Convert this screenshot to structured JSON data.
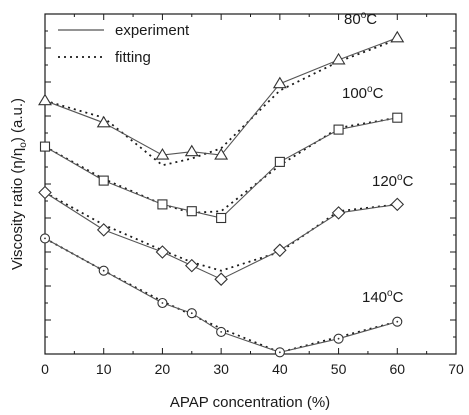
{
  "chart_data": {
    "type": "line",
    "xlabel": "APAP concentration (%)",
    "ylabel_main": "Viscosity ratio (",
    "ylabel_eta": "η/η",
    "ylabel_sub": "o",
    "ylabel_tail": ") (a.u.)",
    "xlim": [
      0,
      70
    ],
    "ylim": [
      0,
      10
    ],
    "x_ticks": [
      "0",
      "10",
      "20",
      "30",
      "40",
      "50",
      "60",
      "70"
    ],
    "legend": {
      "placement": "top-left",
      "experiment": "experiment",
      "fitting": "fitting"
    },
    "series": [
      {
        "name": "80",
        "name_suffix": "C",
        "marker": "triangle",
        "x": [
          0,
          10,
          20,
          25,
          30,
          40,
          50,
          60
        ],
        "y": [
          7.45,
          6.8,
          5.85,
          5.95,
          5.85,
          7.95,
          8.65,
          9.3
        ],
        "fit": [
          7.45,
          6.95,
          5.55,
          5.75,
          6.05,
          7.75,
          8.6,
          9.25
        ]
      },
      {
        "name": "100",
        "name_suffix": "C",
        "marker": "square",
        "x": [
          0,
          10,
          20,
          25,
          30,
          40,
          50,
          60
        ],
        "y": [
          6.1,
          5.1,
          4.4,
          4.2,
          4.0,
          5.65,
          6.6,
          6.95
        ],
        "fit": [
          6.1,
          5.15,
          4.4,
          4.15,
          4.2,
          5.55,
          6.65,
          6.95
        ]
      },
      {
        "name": "120",
        "name_suffix": "C",
        "marker": "diamond",
        "x": [
          0,
          10,
          20,
          25,
          30,
          40,
          50,
          60
        ],
        "y": [
          4.75,
          3.65,
          3.0,
          2.6,
          2.2,
          3.05,
          4.15,
          4.4
        ],
        "fit": [
          4.75,
          3.8,
          3.05,
          2.7,
          2.45,
          3.0,
          4.2,
          4.4
        ]
      },
      {
        "name": "140",
        "name_suffix": "C",
        "marker": "circle",
        "x": [
          0,
          10,
          20,
          25,
          30,
          40,
          50,
          60
        ],
        "y": [
          3.4,
          2.45,
          1.5,
          1.2,
          0.65,
          0.05,
          0.45,
          0.95
        ],
        "fit": [
          3.4,
          2.45,
          1.55,
          1.15,
          0.75,
          0.05,
          0.5,
          0.95
        ]
      }
    ]
  }
}
